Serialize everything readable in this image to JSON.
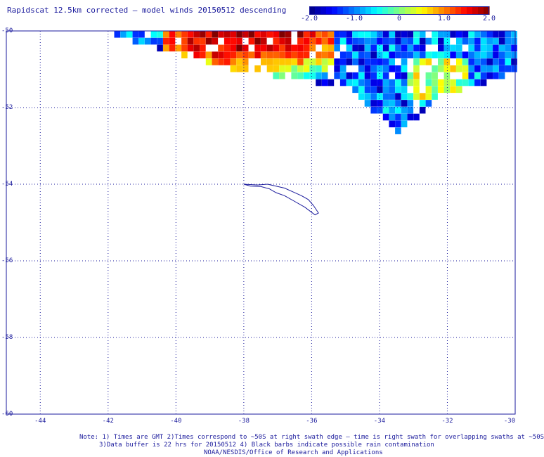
{
  "title": "Rapidscat 12.5km corrected — model winds 20150512 descending",
  "colorbar": {
    "min": -2.0,
    "max": 2.0,
    "colormap": "jet",
    "tick_labels": [
      "-2.0",
      "-1.0",
      "0",
      "1.0",
      "2.0"
    ]
  },
  "axes": {
    "lat_labels": [
      "-50",
      "-52",
      "-54",
      "-56",
      "-58",
      "-60"
    ],
    "lon_labels": [
      "-44",
      "-42",
      "-40",
      "-38",
      "-36",
      "-34",
      "-32",
      "-30"
    ],
    "lat_range": [
      -60,
      -50
    ],
    "lon_range": [
      -45,
      -30
    ],
    "grid": "dotted"
  },
  "island": "South Georgia",
  "notes": {
    "line1": "Note: 1) Times are GMT 2)Times correspond to ~50S at right swath edge — time is right swath for overlapping swaths at ~50S",
    "line2": "3)Data buffer is 22 hrs for 20150512 4) Black barbs indicate possible rain contamination",
    "line3": "NOAA/NESDIS/Office of Research and Applications"
  },
  "colors": {
    "frame": "#1a1a9c",
    "grid": "#1a1a9c",
    "coast": "#1a1a9c",
    "text": "#1a1a9c"
  }
}
